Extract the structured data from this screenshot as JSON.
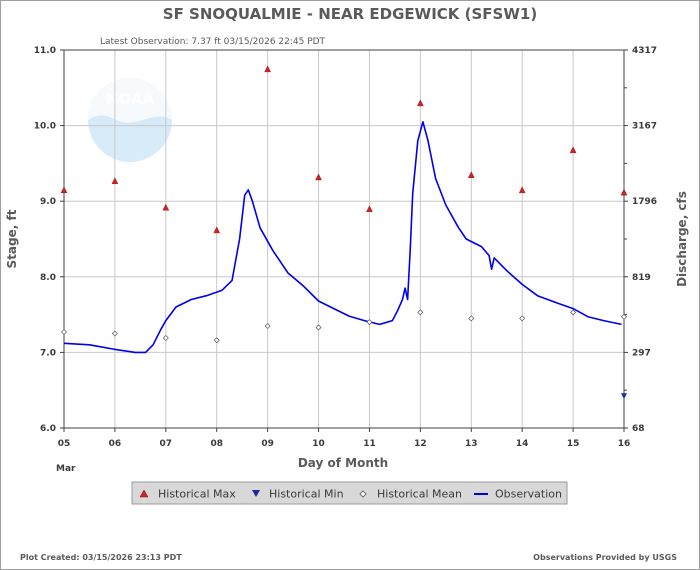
{
  "chart_data": {
    "type": "line",
    "title": "SF SNOQUALMIE - NEAR EDGEWICK  (SFSW1)",
    "subtitle": "Latest Observation: 7.37 ft 03/15/2026 22:45 PDT",
    "xlabel": "Day of Month",
    "x_month_label": "Mar",
    "ylabel_left": "Stage, ft",
    "ylabel_right": "Discharge, cfs",
    "xlim": [
      5,
      16
    ],
    "ylim": [
      6.0,
      11.0
    ],
    "x_ticks": [
      "05",
      "06",
      "07",
      "08",
      "09",
      "10",
      "11",
      "12",
      "13",
      "14",
      "15",
      "16"
    ],
    "y_ticks_left": [
      "6.0",
      "7.0",
      "8.0",
      "9.0",
      "10.0",
      "11.0"
    ],
    "y_ticks_right": [
      {
        "stage": 6.0,
        "label": "68"
      },
      {
        "stage": 7.0,
        "label": "297"
      },
      {
        "stage": 8.0,
        "label": "819"
      },
      {
        "stage": 9.0,
        "label": "1796"
      },
      {
        "stage": 10.0,
        "label": "3167"
      },
      {
        "stage": 11.0,
        "label": "4317"
      }
    ],
    "series": [
      {
        "name": "Observation",
        "color": "#0000ee",
        "x": [
          5.0,
          5.5,
          6.0,
          6.4,
          6.6,
          6.75,
          6.9,
          7.0,
          7.2,
          7.5,
          7.8,
          8.1,
          8.3,
          8.45,
          8.55,
          8.62,
          8.7,
          8.85,
          9.1,
          9.4,
          9.7,
          10.0,
          10.3,
          10.6,
          10.9,
          11.2,
          11.45,
          11.55,
          11.65,
          11.7,
          11.75,
          11.8,
          11.85,
          11.95,
          12.05,
          12.15,
          12.3,
          12.5,
          12.75,
          12.9,
          13.2,
          13.35,
          13.4,
          13.45,
          13.7,
          14.0,
          14.3,
          14.7,
          15.0,
          15.3,
          15.6,
          15.95
        ],
        "y": [
          7.12,
          7.1,
          7.04,
          7.0,
          7.0,
          7.1,
          7.3,
          7.42,
          7.6,
          7.7,
          7.75,
          7.82,
          7.95,
          8.5,
          9.08,
          9.15,
          9.0,
          8.65,
          8.35,
          8.05,
          7.88,
          7.68,
          7.58,
          7.48,
          7.42,
          7.37,
          7.42,
          7.55,
          7.7,
          7.85,
          7.7,
          8.35,
          9.1,
          9.8,
          10.05,
          9.8,
          9.3,
          8.95,
          8.65,
          8.5,
          8.4,
          8.28,
          8.1,
          8.25,
          8.08,
          7.9,
          7.75,
          7.65,
          7.58,
          7.47,
          7.42,
          7.37
        ]
      }
    ],
    "historical_max": {
      "name": "Historical Max",
      "color": "#d62020",
      "x": [
        5,
        6,
        7,
        8,
        9,
        10,
        11,
        12,
        13,
        14,
        15,
        16
      ],
      "y": [
        9.15,
        9.27,
        8.92,
        8.62,
        10.75,
        9.32,
        8.9,
        10.3,
        9.35,
        9.15,
        9.68,
        9.12
      ]
    },
    "historical_min": {
      "name": "Historical Min",
      "color": "#1a2aa8",
      "x": [
        16
      ],
      "y": [
        6.42
      ]
    },
    "historical_mean": {
      "name": "Historical Mean",
      "color": "#555555",
      "x": [
        5,
        6,
        7,
        8,
        9,
        10,
        11,
        12,
        13,
        14,
        15,
        16
      ],
      "y": [
        7.27,
        7.25,
        7.19,
        7.16,
        7.35,
        7.33,
        7.4,
        7.53,
        7.45,
        7.45,
        7.53,
        7.47
      ]
    },
    "legend": [
      "Historical Max",
      "Historical Min",
      "Historical Mean",
      "Observation"
    ],
    "grid": true
  },
  "watermark": "NOAA",
  "footer": {
    "left": "Plot Created: 03/15/2026 23:13 PDT",
    "right": "Observations Provided by USGS"
  }
}
